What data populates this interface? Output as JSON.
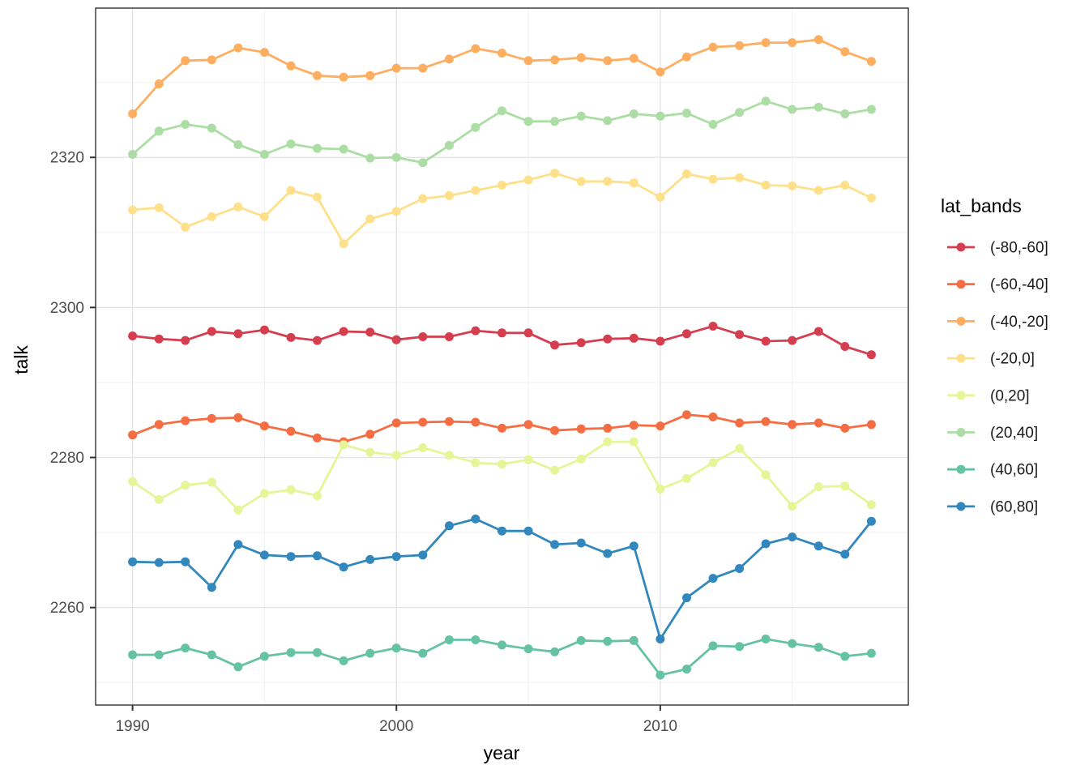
{
  "chart_data": {
    "type": "line",
    "title": "",
    "xlabel": "year",
    "ylabel": "talk",
    "legend_title": "lat_bands",
    "legend_position": "right",
    "grid": true,
    "x_domain": [
      1988.6,
      2019.4
    ],
    "y_domain": [
      2247.0,
      2339.9
    ],
    "x_ticks_major": [
      1990,
      2000,
      2010
    ],
    "x_tick_labels": [
      "1990",
      "2000",
      "2010"
    ],
    "x_ticks_minor": [
      1995,
      2005,
      2015
    ],
    "y_ticks_major": [
      2260,
      2280,
      2300,
      2320
    ],
    "y_tick_labels": [
      "2260",
      "2280",
      "2300",
      "2320"
    ],
    "y_ticks_minor": [
      2250,
      2270,
      2290,
      2310,
      2330
    ],
    "x": [
      1990,
      1991,
      1992,
      1993,
      1994,
      1995,
      1996,
      1997,
      1998,
      1999,
      2000,
      2001,
      2002,
      2003,
      2004,
      2005,
      2006,
      2007,
      2008,
      2009,
      2010,
      2011,
      2012,
      2013,
      2014,
      2015,
      2016,
      2017,
      2018
    ],
    "series": [
      {
        "name": "(-80,-60]",
        "color": "#d53e4f",
        "values": [
          2296.2,
          2295.8,
          2295.6,
          2296.8,
          2296.5,
          2297.0,
          2296.0,
          2295.6,
          2296.8,
          2296.7,
          2295.7,
          2296.1,
          2296.1,
          2296.9,
          2296.6,
          2296.6,
          2295.0,
          2295.3,
          2295.8,
          2295.9,
          2295.5,
          2296.5,
          2297.5,
          2296.4,
          2295.5,
          2295.6,
          2296.8,
          2294.8,
          2293.7
        ]
      },
      {
        "name": "(-60,-40]",
        "color": "#f46d43",
        "values": [
          2283.0,
          2284.4,
          2284.9,
          2285.2,
          2285.3,
          2284.2,
          2283.5,
          2282.6,
          2282.1,
          2283.1,
          2284.6,
          2284.7,
          2284.8,
          2284.7,
          2283.9,
          2284.4,
          2283.6,
          2283.8,
          2283.9,
          2284.3,
          2284.2,
          2285.7,
          2285.4,
          2284.6,
          2284.8,
          2284.4,
          2284.6,
          2283.9,
          2284.4
        ]
      },
      {
        "name": "(-40,-20]",
        "color": "#fdae61",
        "values": [
          2325.8,
          2329.8,
          2332.9,
          2333.0,
          2334.6,
          2334.0,
          2332.2,
          2330.9,
          2330.7,
          2330.9,
          2331.9,
          2331.9,
          2333.1,
          2334.5,
          2333.9,
          2332.9,
          2333.0,
          2333.3,
          2332.9,
          2333.2,
          2331.4,
          2333.4,
          2334.7,
          2334.9,
          2335.3,
          2335.3,
          2335.7,
          2334.1,
          2332.8
        ]
      },
      {
        "name": "(-20,0]",
        "color": "#fee08b",
        "values": [
          2313.0,
          2313.3,
          2310.7,
          2312.1,
          2313.4,
          2312.1,
          2315.6,
          2314.7,
          2308.5,
          2311.8,
          2312.8,
          2314.5,
          2314.9,
          2315.6,
          2316.3,
          2317.0,
          2317.9,
          2316.8,
          2316.8,
          2316.6,
          2314.7,
          2317.8,
          2317.1,
          2317.3,
          2316.3,
          2316.2,
          2315.6,
          2316.3,
          2314.6
        ]
      },
      {
        "name": "(0,20]",
        "color": "#e6f598",
        "values": [
          2276.8,
          2274.4,
          2276.3,
          2276.7,
          2273.0,
          2275.2,
          2275.7,
          2274.9,
          2281.7,
          2280.7,
          2280.3,
          2281.3,
          2280.3,
          2279.3,
          2279.1,
          2279.7,
          2278.3,
          2279.8,
          2282.1,
          2282.1,
          2275.8,
          2277.2,
          2279.3,
          2281.2,
          2277.7,
          2273.5,
          2276.1,
          2276.2,
          2273.7
        ]
      },
      {
        "name": "(20,40]",
        "color": "#abdda4",
        "values": [
          2320.4,
          2323.5,
          2324.4,
          2323.9,
          2321.7,
          2320.4,
          2321.8,
          2321.2,
          2321.1,
          2319.9,
          2320.0,
          2319.3,
          2321.6,
          2324.0,
          2326.2,
          2324.8,
          2324.8,
          2325.5,
          2324.9,
          2325.8,
          2325.5,
          2325.9,
          2324.4,
          2326.0,
          2327.5,
          2326.4,
          2326.7,
          2325.8,
          2326.4
        ]
      },
      {
        "name": "(40,60]",
        "color": "#66c2a5",
        "values": [
          2253.7,
          2253.7,
          2254.6,
          2253.7,
          2252.1,
          2253.5,
          2254.0,
          2254.0,
          2252.9,
          2253.9,
          2254.6,
          2253.9,
          2255.7,
          2255.7,
          2255.0,
          2254.5,
          2254.1,
          2255.6,
          2255.5,
          2255.6,
          2251.0,
          2251.8,
          2254.9,
          2254.8,
          2255.8,
          2255.2,
          2254.7,
          2253.5,
          2253.9
        ]
      },
      {
        "name": "(60,80]",
        "color": "#3288bd",
        "values": [
          2266.1,
          2266.0,
          2266.1,
          2262.7,
          2268.4,
          2267.0,
          2266.8,
          2266.9,
          2265.4,
          2266.4,
          2266.8,
          2267.0,
          2270.9,
          2271.8,
          2270.2,
          2270.2,
          2268.4,
          2268.6,
          2267.2,
          2268.2,
          2255.8,
          2261.3,
          2263.9,
          2265.2,
          2268.5,
          2269.4,
          2268.2,
          2267.1,
          2271.5
        ]
      }
    ]
  }
}
